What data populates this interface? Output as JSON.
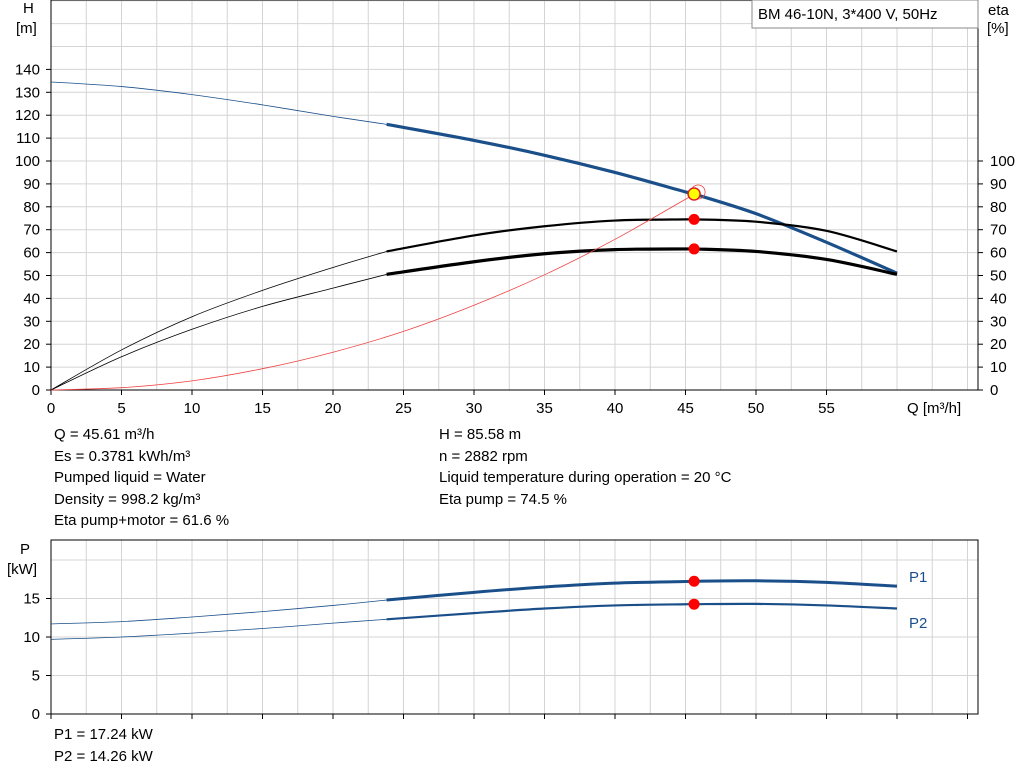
{
  "chart_data": [
    {
      "type": "line",
      "title": "BM 46-10N, 3*400 V, 50Hz",
      "xlabel": "Q [m³/h]",
      "ylabel_line1": "H",
      "ylabel_line2": "[m]",
      "y2label_line1": "eta",
      "y2label_line2": "[%]",
      "xlim": [
        0,
        65
      ],
      "ylim": [
        0,
        140
      ],
      "y2lim": [
        0,
        140
      ],
      "x_ticks": [
        0,
        5,
        10,
        15,
        20,
        25,
        30,
        35,
        40,
        45,
        50,
        55
      ],
      "y_ticks": [
        0,
        10,
        20,
        30,
        40,
        50,
        60,
        70,
        80,
        90,
        100,
        110,
        120,
        130,
        140
      ],
      "y2_ticks": [
        0,
        10,
        20,
        30,
        40,
        50,
        60,
        70,
        80,
        90,
        100
      ],
      "grid": true,
      "operating_range": [
        23.8,
        60
      ],
      "series": [
        {
          "key": "H",
          "axis": "left",
          "color": "#1a4f8a",
          "x": [
            0,
            5,
            10,
            15,
            20,
            23.8,
            30,
            35,
            40,
            45,
            45.61,
            50,
            55,
            60
          ],
          "y": [
            134.5,
            132.5,
            129,
            124.5,
            119.5,
            116,
            109,
            102.5,
            95,
            86.5,
            85.58,
            77,
            64.5,
            51
          ]
        },
        {
          "key": "eta_pump",
          "axis": "right",
          "color": "#000000",
          "x": [
            0,
            5,
            10,
            15,
            20,
            23.8,
            30,
            35,
            40,
            45,
            45.61,
            50,
            55,
            60
          ],
          "y": [
            0,
            17.5,
            32,
            43.5,
            53.5,
            60.5,
            67.5,
            71.5,
            74,
            74.5,
            74.5,
            73.5,
            69.5,
            60.5
          ]
        },
        {
          "key": "eta_pump_motor",
          "axis": "right",
          "color": "#000000",
          "x": [
            0,
            5,
            10,
            15,
            20,
            23.8,
            30,
            35,
            40,
            45,
            45.61,
            50,
            55,
            60
          ],
          "y": [
            0,
            14.5,
            26.5,
            36.5,
            44.5,
            50.5,
            56,
            59.5,
            61.3,
            61.6,
            61.6,
            60.5,
            57,
            50.5
          ]
        },
        {
          "key": "system_curve",
          "axis": "left",
          "color": "#ee4444",
          "x": [
            0,
            5,
            10,
            15,
            20,
            25,
            30,
            35,
            40,
            45,
            45.61
          ],
          "y": [
            0,
            1,
            4,
            9.3,
            16.5,
            25.6,
            37,
            50.3,
            65.8,
            83.3,
            85.58
          ]
        }
      ],
      "operating_point": {
        "x": 45.61,
        "H": 85.58,
        "eta_pump": 74.5,
        "eta_pump_motor": 61.6
      },
      "info_left": [
        "Q = 45.61 m³/h",
        "Es = 0.3781 kWh/m³",
        "Pumped liquid = Water",
        "Density = 998.2 kg/m³",
        "Eta pump+motor = 61.6 %"
      ],
      "info_right": [
        "H = 85.58 m",
        "n = 2882 rpm",
        "Liquid temperature during operation = 20 °C",
        "Eta pump = 74.5 %"
      ]
    },
    {
      "type": "line",
      "ylabel_line1": "P",
      "ylabel_line2": "[kW]",
      "xlim": [
        0,
        65
      ],
      "ylim": [
        0,
        20
      ],
      "y_ticks": [
        0,
        5,
        10,
        15
      ],
      "grid": true,
      "operating_range": [
        23.8,
        60
      ],
      "series": [
        {
          "name": "P1",
          "color": "#1a4f8a",
          "x": [
            0,
            5,
            10,
            15,
            20,
            23.8,
            30,
            35,
            40,
            45,
            45.61,
            50,
            55,
            60
          ],
          "y": [
            11.7,
            12,
            12.6,
            13.3,
            14.1,
            14.8,
            15.8,
            16.5,
            17,
            17.2,
            17.24,
            17.3,
            17.1,
            16.6
          ]
        },
        {
          "name": "P2",
          "color": "#1a4f8a",
          "x": [
            0,
            5,
            10,
            15,
            20,
            23.8,
            30,
            35,
            40,
            45,
            45.61,
            50,
            55,
            60
          ],
          "y": [
            9.7,
            10,
            10.5,
            11.1,
            11.8,
            12.3,
            13.1,
            13.7,
            14.1,
            14.25,
            14.26,
            14.3,
            14.1,
            13.7
          ]
        }
      ],
      "operating_point": {
        "x": 45.61,
        "P1": 17.24,
        "P2": 14.26
      },
      "info": [
        "P1 = 17.24 kW",
        "P2 = 14.26 kW"
      ]
    }
  ]
}
